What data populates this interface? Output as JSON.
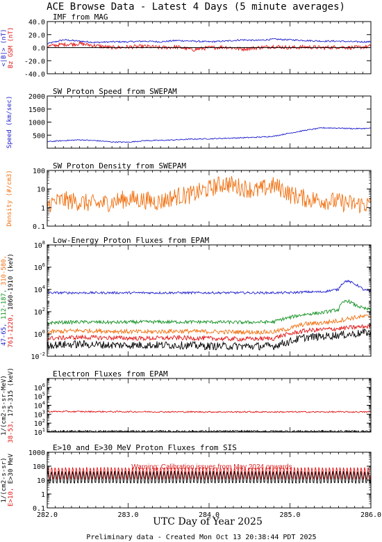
{
  "title": "ACE Browse Data - Latest 4 Days (5 minute averages)",
  "xlabel": "UTC Day of Year 2025",
  "footer": "Preliminary data - Created Mon Oct 13 20:38:44 PDT 2025",
  "colors": {
    "blue": "#1a1acc",
    "red": "#e01010",
    "orange": "#f07010",
    "green": "#109020",
    "black": "#000000"
  },
  "chart_data": [
    {
      "type": "line",
      "title": "IMF from MAG",
      "xlim": [
        282.0,
        286.0
      ],
      "ylim": [
        -40,
        40
      ],
      "yscale": "linear",
      "yticks": [
        "40.0",
        "20.0",
        "0.0",
        "-20.0",
        "-40.0"
      ],
      "ylabel_parts": [
        {
          "text": "<|B|> (nT)",
          "color": "#1a1acc"
        },
        {
          "text": "Bz GSM (nT)",
          "color": "#e01010"
        }
      ],
      "zero_line": true,
      "series": [
        {
          "color": "#1a1acc",
          "noise": 1.2,
          "x": [
            282.0,
            282.2,
            282.4,
            282.6,
            282.8,
            283.0,
            283.2,
            283.4,
            283.6,
            283.8,
            284.0,
            284.2,
            284.4,
            284.6,
            284.8,
            285.0,
            285.2,
            285.4,
            285.6,
            285.8,
            286.0
          ],
          "y": [
            6,
            12,
            10,
            8,
            9,
            9,
            10,
            9,
            11,
            10,
            9,
            10,
            12,
            11,
            13,
            12,
            11,
            10,
            10,
            9,
            9
          ]
        },
        {
          "color": "#e01010",
          "noise": 3,
          "x": [
            282.0,
            282.2,
            282.4,
            282.6,
            282.8,
            283.0,
            283.2,
            283.4,
            283.6,
            283.8,
            284.0,
            284.2,
            284.4,
            284.6,
            284.8,
            285.0,
            285.2,
            285.4,
            285.6,
            285.8,
            286.0
          ],
          "y": [
            2,
            5,
            6,
            3,
            0,
            1,
            2,
            0,
            1,
            -3,
            0,
            1,
            -2,
            0,
            2,
            0,
            1,
            0,
            1,
            0,
            2
          ]
        }
      ]
    },
    {
      "type": "line",
      "title": "SW Proton Speed from SWEPAM",
      "xlim": [
        282.0,
        286.0
      ],
      "ylim": [
        0,
        2000
      ],
      "yscale": "linear",
      "yticks": [
        "2000",
        "1500",
        "1000",
        "500"
      ],
      "ylabel_parts": [
        {
          "text": "Speed (km/sec)",
          "color": "#1a1acc"
        }
      ],
      "series": [
        {
          "color": "#1a1acc",
          "noise": 20,
          "x": [
            282.0,
            282.2,
            282.4,
            282.6,
            282.8,
            283.0,
            283.2,
            283.4,
            283.6,
            283.8,
            284.0,
            284.2,
            284.4,
            284.6,
            284.8,
            285.0,
            285.2,
            285.4,
            285.6,
            285.8,
            286.0
          ],
          "y": [
            250,
            290,
            320,
            290,
            240,
            230,
            290,
            300,
            320,
            350,
            360,
            380,
            400,
            420,
            460,
            580,
            690,
            780,
            770,
            750,
            760
          ]
        }
      ]
    },
    {
      "type": "line",
      "title": "SW Proton Density from SWEPAM",
      "xlim": [
        282.0,
        286.0
      ],
      "ylim": [
        0.1,
        100
      ],
      "yscale": "log",
      "yticks": [
        "100",
        "10",
        "1",
        "0.1"
      ],
      "ylabel_parts": [
        {
          "text": "Density (#/cm3)",
          "color": "#f07010"
        }
      ],
      "series": [
        {
          "color": "#f07010",
          "noise": 0.5,
          "x": [
            282.0,
            282.2,
            282.4,
            282.6,
            282.8,
            283.0,
            283.2,
            283.4,
            283.6,
            283.8,
            284.0,
            284.2,
            284.4,
            284.6,
            284.8,
            285.0,
            285.2,
            285.4,
            285.6,
            285.8,
            286.0
          ],
          "y": [
            1.5,
            2.5,
            2,
            1.5,
            2,
            3,
            2.5,
            2,
            4,
            5,
            10,
            20,
            12,
            8,
            15,
            5,
            3,
            2.5,
            2,
            1.5,
            1.5
          ]
        }
      ]
    },
    {
      "type": "line",
      "title": "Low-Energy Proton Fluxes from EPAM",
      "xlim": [
        282.0,
        286.0
      ],
      "ylim": [
        0.01,
        100000000
      ],
      "yscale": "log",
      "yticks": [
        "10^8",
        "10^6",
        "10^4",
        "10^2",
        "10^0",
        "10^-2"
      ],
      "ylabel_parts": [
        {
          "text": "1/(cm2-s-sr-MeV)",
          "color": "#000000"
        },
        {
          "text": "47-65,",
          "color": "#1a1acc"
        },
        {
          "text": "112-187,",
          "color": "#109020"
        },
        {
          "text": "310-580,",
          "color": "#f07010"
        },
        {
          "text": "761-1220,",
          "color": "#e01010"
        },
        {
          "text": "1060-1910 (keV)",
          "color": "#000000"
        }
      ],
      "series": [
        {
          "color": "#1a1acc",
          "noise": 0.1,
          "x": [
            282.0,
            282.4,
            282.8,
            283.2,
            283.6,
            284.0,
            284.4,
            284.8,
            285.0,
            285.2,
            285.4,
            285.6,
            285.7,
            285.8,
            285.9,
            286.0
          ],
          "y": [
            5000,
            5000,
            5000,
            5000,
            5000,
            5000,
            5000,
            5000,
            5000,
            6000,
            6000,
            10000,
            60000,
            30000,
            10000,
            6000
          ]
        },
        {
          "color": "#109020",
          "noise": 0.15,
          "x": [
            282.0,
            282.4,
            282.8,
            283.2,
            283.6,
            284.0,
            284.4,
            284.8,
            285.0,
            285.2,
            285.4,
            285.6,
            285.7,
            285.8,
            285.9,
            286.0
          ],
          "y": [
            10,
            12,
            11,
            12,
            12,
            12,
            11,
            12,
            30,
            60,
            80,
            150,
            1000,
            400,
            200,
            150
          ]
        },
        {
          "color": "#f07010",
          "noise": 0.2,
          "x": [
            282.0,
            282.4,
            282.8,
            283.2,
            283.6,
            284.0,
            284.4,
            284.8,
            285.0,
            285.2,
            285.4,
            285.6,
            285.8,
            286.0
          ],
          "y": [
            1.5,
            2,
            1.8,
            1.5,
            1.8,
            1.6,
            1.5,
            1.5,
            3,
            8,
            10,
            15,
            30,
            40
          ]
        },
        {
          "color": "#e01010",
          "noise": 0.2,
          "x": [
            282.0,
            282.4,
            282.8,
            283.2,
            283.6,
            284.0,
            284.4,
            284.8,
            285.0,
            285.2,
            285.4,
            285.6,
            285.8,
            286.0
          ],
          "y": [
            0.4,
            0.5,
            0.45,
            0.4,
            0.45,
            0.4,
            0.35,
            0.4,
            1,
            2,
            2.5,
            3,
            4,
            5
          ]
        },
        {
          "color": "#000000",
          "noise": 0.35,
          "x": [
            282.0,
            282.4,
            282.8,
            283.2,
            283.6,
            284.0,
            284.4,
            284.8,
            285.0,
            285.2,
            285.4,
            285.6,
            285.8,
            286.0
          ],
          "y": [
            0.1,
            0.12,
            0.1,
            0.1,
            0.1,
            0.08,
            0.08,
            0.08,
            0.2,
            0.5,
            0.6,
            0.8,
            1,
            1.5
          ]
        }
      ]
    },
    {
      "type": "line",
      "title": "Electron Fluxes from EPAM",
      "xlim": [
        282.0,
        286.0
      ],
      "ylim": [
        10,
        10000000
      ],
      "yscale": "log",
      "yticks": [
        "10^6",
        "10^5",
        "10^4",
        "10^3",
        "10^2",
        "10^1"
      ],
      "ylabel_parts": [
        {
          "text": "1/(cm2-s-sr-MeV)",
          "color": "#000000"
        },
        {
          "text": "38-53,",
          "color": "#e01010"
        },
        {
          "text": "175-315 (keV)",
          "color": "#000000"
        }
      ],
      "series": [
        {
          "color": "#e01010",
          "noise": 0.08,
          "x": [
            282.0,
            283.0,
            284.0,
            285.0,
            286.0
          ],
          "y": [
            2000,
            1900,
            1800,
            1800,
            1800
          ]
        },
        {
          "color": "#000000",
          "noise": 0.1,
          "x": [
            282.0,
            283.0,
            284.0,
            285.0,
            286.0
          ],
          "y": [
            12,
            12,
            12,
            12,
            12
          ]
        }
      ]
    },
    {
      "type": "line",
      "title": "E>10 and E>30 MeV Proton Fluxes from SIS",
      "xlim": [
        282.0,
        286.0
      ],
      "ylim": [
        0.1,
        1000
      ],
      "yscale": "log",
      "yticks": [
        "1000",
        "100",
        "10",
        "1",
        "0.1"
      ],
      "xticks": [
        "282.0",
        "283.0",
        "284.0",
        "285.0",
        "286.0"
      ],
      "warning": "Warning: Calibration issues from May 2024 onwards",
      "ylabel_parts": [
        {
          "text": "1/(cm2-s-sr)",
          "color": "#000000"
        },
        {
          "text": "E>10,",
          "color": "#e01010"
        },
        {
          "text": "E>30 MeV",
          "color": "#000000"
        }
      ],
      "series": [
        {
          "color": "#e01010",
          "oscillate": true,
          "x": [
            282.0,
            286.0
          ],
          "y": [
            30,
            30
          ]
        },
        {
          "color": "#000000",
          "oscillate": true,
          "x": [
            282.0,
            286.0
          ],
          "y": [
            15,
            15
          ]
        }
      ]
    }
  ]
}
